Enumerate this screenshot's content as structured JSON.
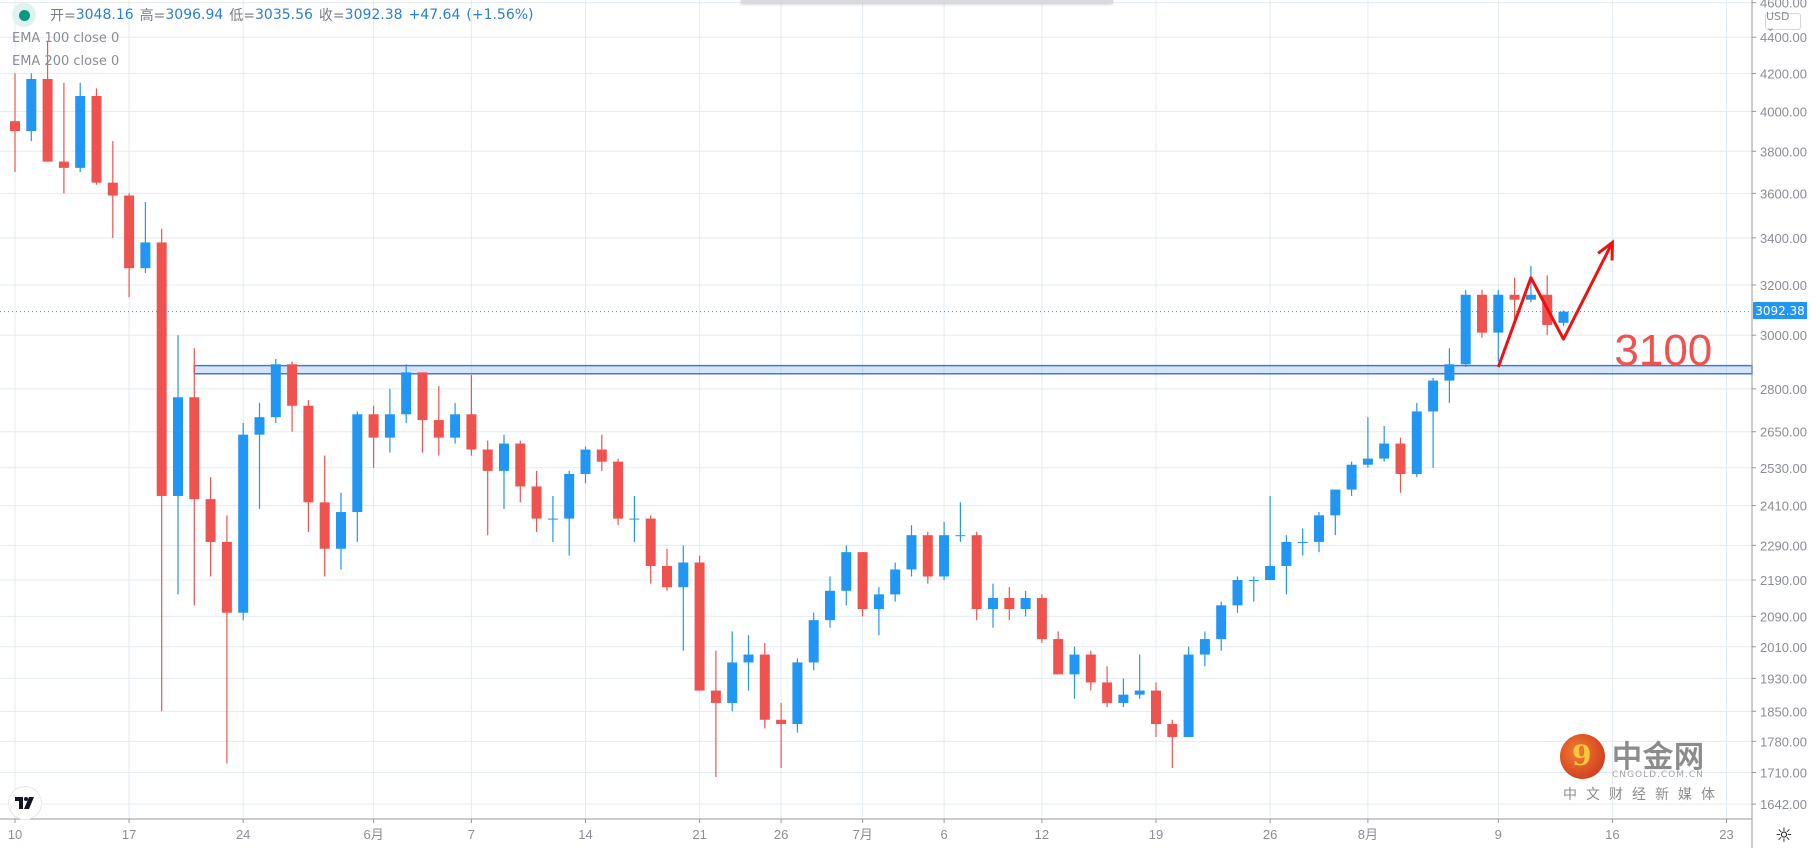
{
  "legend": {
    "open_label": "开=",
    "open": "3048.16",
    "high_label": "高=",
    "high": "3096.94",
    "low_label": "低=",
    "low": "3035.56",
    "close_label": "收=",
    "close": "3092.38",
    "change": "+47.64",
    "change_pct": "(+1.56%)",
    "indicators": [
      "EMA 100 close 0",
      "EMA 200 close 0"
    ]
  },
  "currency": "USD ⌄",
  "current_price_label": "3092.38",
  "colors": {
    "up": "#2196f3",
    "down": "#ef5350",
    "grid": "#e3ecf3",
    "annotation": "#f01010",
    "band": "#3d7bd9"
  },
  "watermark": {
    "name": "中金网",
    "domain": "CNGOLD.COM.CN",
    "tagline": "中文财经新媒体"
  },
  "chart_data": {
    "type": "candlestick",
    "price_scale": "log",
    "ylim": [
      1620,
      4650
    ],
    "grid": true,
    "y_ticks": [
      "4600.00",
      "4400.00",
      "4200.00",
      "4000.00",
      "3800.00",
      "3600.00",
      "3400.00",
      "3200.00",
      "3000.00",
      "2800.00",
      "2650.00",
      "2530.00",
      "2410.00",
      "2290.00",
      "2190.00",
      "2090.00",
      "2010.00",
      "1930.00",
      "1850.00",
      "1780.00",
      "1710.00",
      "1642.00"
    ],
    "x_ticks": [
      {
        "label": "10",
        "date": "05-10"
      },
      {
        "label": "17",
        "date": "05-17"
      },
      {
        "label": "24",
        "date": "05-24"
      },
      {
        "label": "6月",
        "date": "06-01"
      },
      {
        "label": "7",
        "date": "06-07"
      },
      {
        "label": "14",
        "date": "06-14"
      },
      {
        "label": "21",
        "date": "06-21"
      },
      {
        "label": "26",
        "date": "06-26"
      },
      {
        "label": "7月",
        "date": "07-01"
      },
      {
        "label": "6",
        "date": "07-06"
      },
      {
        "label": "12",
        "date": "07-12"
      },
      {
        "label": "19",
        "date": "07-19"
      },
      {
        "label": "26",
        "date": "07-26"
      },
      {
        "label": "8月",
        "date": "08-01"
      },
      {
        "label": "9",
        "date": "08-09"
      },
      {
        "label": "16",
        "date": "08-16"
      },
      {
        "label": "23",
        "date": "08-23"
      }
    ],
    "ohlc_fields": [
      "date",
      "open",
      "high",
      "low",
      "close"
    ],
    "ohlc": [
      [
        "05-10",
        3950,
        4200,
        3700,
        3900
      ],
      [
        "05-11",
        3900,
        4200,
        3850,
        4170
      ],
      [
        "05-12",
        4170,
        4380,
        3750,
        3750
      ],
      [
        "05-13",
        3750,
        4150,
        3600,
        3720
      ],
      [
        "05-14",
        3720,
        4150,
        3700,
        4080
      ],
      [
        "05-15",
        4080,
        4120,
        3640,
        3650
      ],
      [
        "05-16",
        3650,
        3850,
        3400,
        3590
      ],
      [
        "05-17",
        3590,
        3600,
        3150,
        3270
      ],
      [
        "05-18",
        3270,
        3560,
        3250,
        3380
      ],
      [
        "05-19",
        3380,
        3440,
        1850,
        2440
      ],
      [
        "05-20",
        2440,
        3000,
        2150,
        2770
      ],
      [
        "05-21",
        2770,
        2950,
        2120,
        2430
      ],
      [
        "05-22",
        2430,
        2500,
        2200,
        2300
      ],
      [
        "05-23",
        2300,
        2380,
        1730,
        2100
      ],
      [
        "05-24",
        2100,
        2680,
        2080,
        2640
      ],
      [
        "05-25",
        2640,
        2750,
        2400,
        2700
      ],
      [
        "05-26",
        2700,
        2910,
        2680,
        2890
      ],
      [
        "05-27",
        2890,
        2900,
        2650,
        2740
      ],
      [
        "05-28",
        2740,
        2760,
        2330,
        2420
      ],
      [
        "05-29",
        2420,
        2570,
        2200,
        2280
      ],
      [
        "05-30",
        2280,
        2450,
        2220,
        2390
      ],
      [
        "05-31",
        2390,
        2720,
        2300,
        2710
      ],
      [
        "06-01",
        2710,
        2740,
        2530,
        2630
      ],
      [
        "06-02",
        2630,
        2800,
        2580,
        2710
      ],
      [
        "06-03",
        2710,
        2890,
        2680,
        2860
      ],
      [
        "06-04",
        2860,
        2860,
        2580,
        2690
      ],
      [
        "06-05",
        2690,
        2810,
        2570,
        2630
      ],
      [
        "06-06",
        2630,
        2750,
        2610,
        2710
      ],
      [
        "06-07",
        2710,
        2850,
        2570,
        2590
      ],
      [
        "06-08",
        2590,
        2620,
        2320,
        2520
      ],
      [
        "06-09",
        2520,
        2640,
        2400,
        2610
      ],
      [
        "06-10",
        2610,
        2620,
        2420,
        2470
      ],
      [
        "06-11",
        2470,
        2520,
        2330,
        2370
      ],
      [
        "06-12",
        2370,
        2440,
        2300,
        2370
      ],
      [
        "06-13",
        2370,
        2520,
        2260,
        2510
      ],
      [
        "06-14",
        2510,
        2600,
        2480,
        2590
      ],
      [
        "06-15",
        2590,
        2640,
        2520,
        2550
      ],
      [
        "06-16",
        2550,
        2560,
        2350,
        2370
      ],
      [
        "06-17",
        2370,
        2440,
        2300,
        2370
      ],
      [
        "06-18",
        2370,
        2380,
        2180,
        2230
      ],
      [
        "06-19",
        2230,
        2280,
        2160,
        2170
      ],
      [
        "06-20",
        2170,
        2290,
        2000,
        2240
      ],
      [
        "06-21",
        2240,
        2260,
        1900,
        1900
      ],
      [
        "06-22",
        1900,
        2000,
        1700,
        1870
      ],
      [
        "06-23",
        1870,
        2050,
        1850,
        1970
      ],
      [
        "06-24",
        1970,
        2040,
        1900,
        1990
      ],
      [
        "06-25",
        1990,
        2020,
        1810,
        1830
      ],
      [
        "06-26",
        1830,
        1870,
        1720,
        1820
      ],
      [
        "06-27",
        1820,
        1980,
        1800,
        1970
      ],
      [
        "06-28",
        1970,
        2100,
        1950,
        2080
      ],
      [
        "06-29",
        2080,
        2200,
        2060,
        2160
      ],
      [
        "06-30",
        2160,
        2290,
        2120,
        2270
      ],
      [
        "07-01",
        2270,
        2270,
        2090,
        2110
      ],
      [
        "07-02",
        2110,
        2170,
        2040,
        2150
      ],
      [
        "07-03",
        2150,
        2240,
        2130,
        2220
      ],
      [
        "07-04",
        2220,
        2350,
        2200,
        2320
      ],
      [
        "07-05",
        2320,
        2330,
        2180,
        2200
      ],
      [
        "07-06",
        2200,
        2360,
        2190,
        2320
      ],
      [
        "07-07",
        2320,
        2420,
        2300,
        2320
      ],
      [
        "07-08",
        2320,
        2330,
        2080,
        2110
      ],
      [
        "07-09",
        2110,
        2180,
        2060,
        2140
      ],
      [
        "07-10",
        2140,
        2170,
        2080,
        2110
      ],
      [
        "07-11",
        2110,
        2160,
        2090,
        2140
      ],
      [
        "07-12",
        2140,
        2150,
        2020,
        2030
      ],
      [
        "07-13",
        2030,
        2050,
        1940,
        1940
      ],
      [
        "07-14",
        1940,
        2010,
        1880,
        1990
      ],
      [
        "07-15",
        1990,
        2000,
        1900,
        1920
      ],
      [
        "07-16",
        1920,
        1960,
        1860,
        1870
      ],
      [
        "07-17",
        1870,
        1930,
        1860,
        1890
      ],
      [
        "07-18",
        1890,
        1990,
        1880,
        1900
      ],
      [
        "07-19",
        1900,
        1920,
        1790,
        1820
      ],
      [
        "07-20",
        1820,
        1830,
        1720,
        1790
      ],
      [
        "07-21",
        1790,
        2010,
        1790,
        1990
      ],
      [
        "07-22",
        1990,
        2050,
        1960,
        2030
      ],
      [
        "07-23",
        2030,
        2130,
        2000,
        2120
      ],
      [
        "07-24",
        2120,
        2200,
        2100,
        2190
      ],
      [
        "07-25",
        2190,
        2200,
        2130,
        2190
      ],
      [
        "07-26",
        2190,
        2440,
        2190,
        2230
      ],
      [
        "07-27",
        2230,
        2320,
        2150,
        2300
      ],
      [
        "07-28",
        2300,
        2340,
        2260,
        2300
      ],
      [
        "07-29",
        2300,
        2390,
        2270,
        2380
      ],
      [
        "07-30",
        2380,
        2460,
        2320,
        2460
      ],
      [
        "07-31",
        2460,
        2550,
        2440,
        2540
      ],
      [
        "08-01",
        2540,
        2700,
        2530,
        2560
      ],
      [
        "08-02",
        2560,
        2670,
        2550,
        2610
      ],
      [
        "08-03",
        2610,
        2630,
        2450,
        2510
      ],
      [
        "08-04",
        2510,
        2750,
        2500,
        2720
      ],
      [
        "08-05",
        2720,
        2840,
        2530,
        2830
      ],
      [
        "08-06",
        2830,
        2950,
        2750,
        2890
      ],
      [
        "08-07",
        2890,
        3180,
        2880,
        3160
      ],
      [
        "08-08",
        3160,
        3180,
        2990,
        3010
      ],
      [
        "08-09",
        3010,
        3180,
        2900,
        3160
      ],
      [
        "08-10",
        3160,
        3230,
        3060,
        3140
      ],
      [
        "08-11",
        3140,
        3280,
        3130,
        3160
      ],
      [
        "08-12",
        3160,
        3240,
        3000,
        3040
      ],
      [
        "08-13",
        3048.16,
        3096.94,
        3035.56,
        3092.38
      ]
    ],
    "current_price": 3092.38,
    "annotations": {
      "band": {
        "from_date": "05-21",
        "price_low": 2855,
        "price_high": 2885
      },
      "arrow_path": [
        [
          "08-09",
          2880
        ],
        [
          "08-11",
          3230
        ],
        [
          "08-13",
          2985
        ],
        [
          "08-16",
          3380
        ]
      ],
      "text": {
        "label": "3100",
        "date": "08-16",
        "price": 2955
      }
    }
  }
}
